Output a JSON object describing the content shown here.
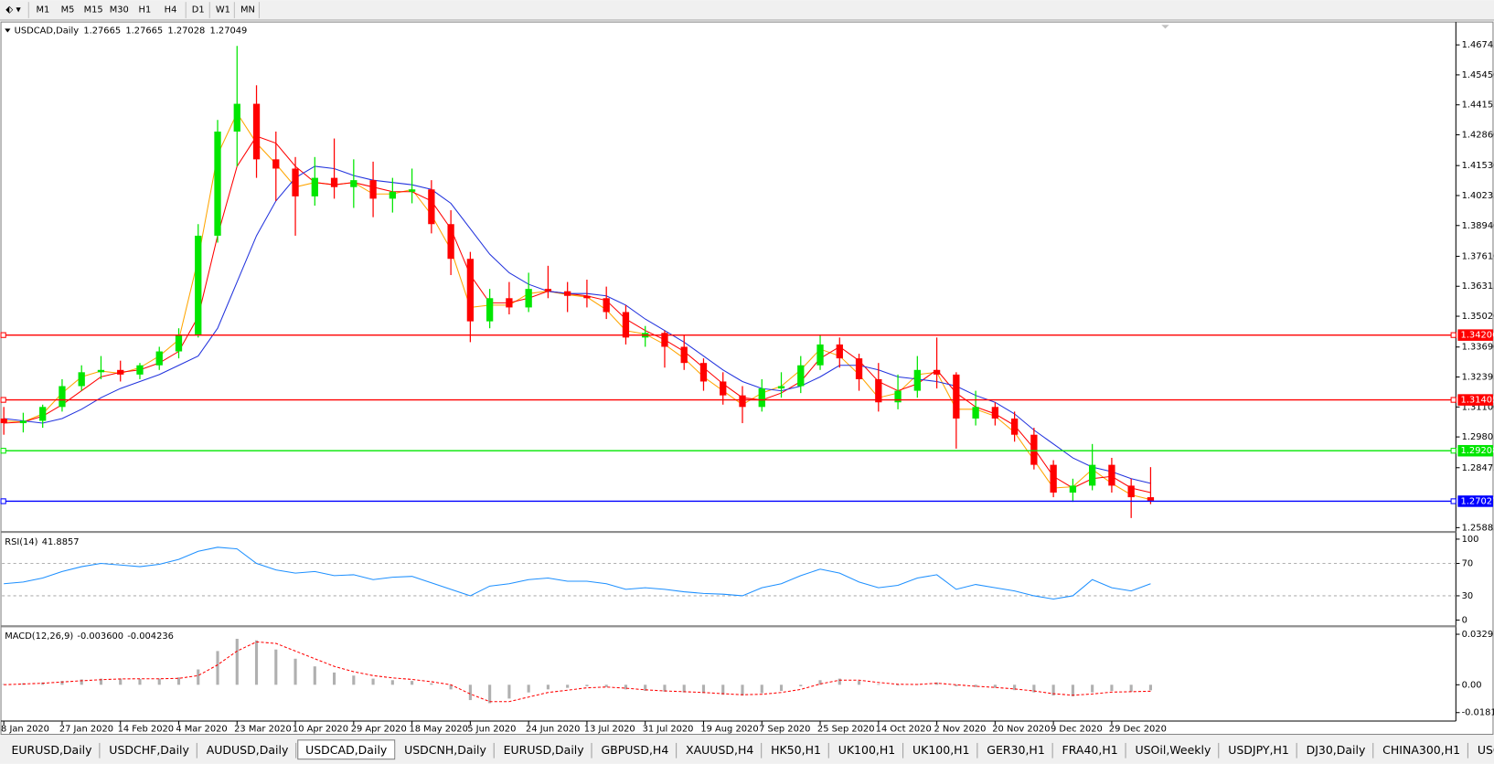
{
  "toolbar": {
    "timeframes": [
      "M1",
      "M5",
      "M15",
      "M30",
      "H1",
      "H4",
      "D1",
      "W1",
      "MN"
    ]
  },
  "chart_data": [
    {
      "type": "candlestick",
      "title": "USDCAD,Daily",
      "header_values": [
        1.27665,
        1.27665,
        1.27028,
        1.27049
      ],
      "categories": [
        "8 Jan 2020",
        null,
        null,
        "27 Jan 2020",
        null,
        null,
        "14 Feb 2020",
        null,
        null,
        "4 Mar 2020",
        null,
        null,
        "23 Mar 2020",
        null,
        null,
        "10 Apr 2020",
        null,
        null,
        "29 Apr 2020",
        null,
        null,
        "18 May 2020",
        null,
        null,
        "5 Jun 2020",
        null,
        null,
        "24 Jun 2020",
        null,
        null,
        "13 Jul 2020",
        null,
        null,
        "31 Jul 2020",
        null,
        null,
        "19 Aug 2020",
        null,
        null,
        "7 Sep 2020",
        null,
        null,
        "25 Sep 2020",
        null,
        null,
        "14 Oct 2020",
        null,
        null,
        "2 Nov 2020",
        null,
        null,
        "20 Nov 2020",
        null,
        null,
        "9 Dec 2020",
        null,
        null,
        "29 Dec 2020",
        null,
        null
      ],
      "open": [
        1.306,
        1.304,
        1.305,
        1.311,
        1.32,
        1.326,
        1.327,
        1.325,
        1.329,
        1.335,
        1.342,
        1.385,
        1.43,
        1.442,
        1.418,
        1.414,
        1.402,
        1.41,
        1.406,
        1.409,
        1.401,
        1.404,
        1.405,
        1.39,
        1.375,
        1.348,
        1.358,
        1.354,
        1.362,
        1.361,
        1.359,
        1.358,
        1.352,
        1.341,
        1.343,
        1.337,
        1.33,
        1.322,
        1.316,
        1.311,
        1.319,
        1.32,
        1.329,
        1.338,
        1.332,
        1.323,
        1.313,
        1.318,
        1.327,
        1.325,
        1.306,
        1.311,
        1.306,
        1.299,
        1.286,
        1.274,
        1.277,
        1.286,
        1.277,
        1.272
      ],
      "high": [
        1.311,
        1.3085,
        1.312,
        1.323,
        1.329,
        1.333,
        1.331,
        1.33,
        1.337,
        1.345,
        1.39,
        1.435,
        1.467,
        1.45,
        1.43,
        1.419,
        1.419,
        1.427,
        1.418,
        1.417,
        1.41,
        1.414,
        1.409,
        1.396,
        1.378,
        1.362,
        1.365,
        1.369,
        1.372,
        1.365,
        1.366,
        1.363,
        1.355,
        1.346,
        1.344,
        1.342,
        1.332,
        1.326,
        1.32,
        1.323,
        1.326,
        1.333,
        1.342,
        1.341,
        1.334,
        1.33,
        1.325,
        1.333,
        1.341,
        1.326,
        1.318,
        1.313,
        1.309,
        1.302,
        1.288,
        1.28,
        1.295,
        1.289,
        1.28,
        1.285
      ],
      "low": [
        1.299,
        1.3,
        1.302,
        1.309,
        1.318,
        1.323,
        1.322,
        1.323,
        1.327,
        1.332,
        1.341,
        1.382,
        1.415,
        1.41,
        1.4,
        1.385,
        1.398,
        1.401,
        1.397,
        1.393,
        1.395,
        1.399,
        1.386,
        1.368,
        1.339,
        1.345,
        1.351,
        1.352,
        1.358,
        1.352,
        1.354,
        1.349,
        1.338,
        1.337,
        1.328,
        1.327,
        1.318,
        1.312,
        1.304,
        1.309,
        1.315,
        1.317,
        1.327,
        1.328,
        1.318,
        1.309,
        1.31,
        1.315,
        1.319,
        1.293,
        1.303,
        1.303,
        1.296,
        1.284,
        1.272,
        1.27,
        1.275,
        1.274,
        1.263,
        1.269
      ],
      "close": [
        1.304,
        1.305,
        1.311,
        1.32,
        1.326,
        1.327,
        1.325,
        1.329,
        1.335,
        1.342,
        1.385,
        1.43,
        1.442,
        1.418,
        1.414,
        1.402,
        1.41,
        1.406,
        1.409,
        1.401,
        1.404,
        1.405,
        1.39,
        1.375,
        1.348,
        1.358,
        1.354,
        1.362,
        1.361,
        1.359,
        1.358,
        1.352,
        1.341,
        1.343,
        1.337,
        1.33,
        1.322,
        1.316,
        1.311,
        1.319,
        1.32,
        1.329,
        1.338,
        1.332,
        1.323,
        1.313,
        1.318,
        1.327,
        1.325,
        1.306,
        1.311,
        1.306,
        1.299,
        1.286,
        1.274,
        1.277,
        1.286,
        1.277,
        1.272,
        1.2705
      ],
      "up_color": "#00e600",
      "down_color": "#ff0000",
      "series": [
        {
          "color": "#ffa500",
          "values": [
            1.305,
            1.3045,
            1.308,
            1.317,
            1.324,
            1.3265,
            1.3255,
            1.328,
            1.333,
            1.34,
            1.375,
            1.42,
            1.438,
            1.425,
            1.416,
            1.406,
            1.408,
            1.407,
            1.408,
            1.403,
            1.403,
            1.405,
            1.394,
            1.379,
            1.354,
            1.355,
            1.355,
            1.36,
            1.361,
            1.3595,
            1.3585,
            1.353,
            1.344,
            1.3425,
            1.338,
            1.332,
            1.324,
            1.318,
            1.312,
            1.317,
            1.32,
            1.327,
            1.336,
            1.333,
            1.325,
            1.315,
            1.317,
            1.325,
            1.326,
            1.31,
            1.31,
            1.307,
            1.3,
            1.288,
            1.276,
            1.2765,
            1.284,
            1.278,
            1.273,
            1.271
          ]
        },
        {
          "color": "#ff0000",
          "values": [
            1.304,
            1.3045,
            1.307,
            1.312,
            1.318,
            1.324,
            1.326,
            1.327,
            1.33,
            1.335,
            1.35,
            1.385,
            1.415,
            1.428,
            1.425,
            1.415,
            1.408,
            1.407,
            1.408,
            1.406,
            1.404,
            1.404,
            1.4,
            1.388,
            1.368,
            1.356,
            1.356,
            1.358,
            1.361,
            1.36,
            1.359,
            1.357,
            1.349,
            1.344,
            1.34,
            1.335,
            1.328,
            1.321,
            1.315,
            1.314,
            1.317,
            1.322,
            1.332,
            1.337,
            1.331,
            1.322,
            1.318,
            1.321,
            1.327,
            1.317,
            1.311,
            1.308,
            1.303,
            1.293,
            1.281,
            1.276,
            1.28,
            1.281,
            1.276,
            1.274
          ]
        },
        {
          "color": "#2233dd",
          "values": [
            1.306,
            1.305,
            1.304,
            1.306,
            1.31,
            1.315,
            1.319,
            1.322,
            1.325,
            1.329,
            1.333,
            1.345,
            1.365,
            1.385,
            1.4,
            1.41,
            1.415,
            1.414,
            1.411,
            1.409,
            1.408,
            1.407,
            1.405,
            1.399,
            1.388,
            1.377,
            1.369,
            1.364,
            1.361,
            1.36,
            1.36,
            1.359,
            1.355,
            1.349,
            1.344,
            1.339,
            1.333,
            1.327,
            1.322,
            1.319,
            1.318,
            1.32,
            1.324,
            1.329,
            1.329,
            1.327,
            1.324,
            1.323,
            1.322,
            1.32,
            1.316,
            1.313,
            1.308,
            1.301,
            1.295,
            1.289,
            1.285,
            1.283,
            1.28,
            1.278
          ]
        }
      ],
      "levels": [
        {
          "value": 1.34206,
          "color": "#ff0000"
        },
        {
          "value": 1.31405,
          "color": "#ff0000"
        },
        {
          "value": 1.29208,
          "color": "#00e600"
        },
        {
          "value": 1.27027,
          "color": "#0000ff"
        }
      ],
      "ylim": [
        1.258,
        1.4761
      ],
      "yticks": [
        1.46745,
        {
          "value": 1.4545,
          "label": "1.45450"
        },
        1.44155,
        {
          "value": 1.4286,
          "label": "1.42860"
        },
        {
          "value": 1.4153,
          "label": "1.41530"
        },
        1.40235,
        {
          "value": 1.3894,
          "label": "1.38940"
        },
        {
          "value": 1.3761,
          "label": "1.37610"
        },
        1.36315,
        {
          "value": 1.3502,
          "label": "1.35020"
        },
        {
          "value": 1.3369,
          "label": "1.33690"
        },
        1.32395,
        {
          "value": 1.311,
          "label": "1.31100"
        },
        1.29805,
        1.28475,
        1.25885
      ]
    },
    {
      "type": "line",
      "title": "RSI(14)",
      "title_value": 41.8857,
      "series": [
        {
          "color": "#1e90ff",
          "values": [
            45,
            47,
            52,
            60,
            66,
            70,
            68,
            66,
            69,
            75,
            85,
            90,
            88,
            70,
            62,
            58,
            60,
            55,
            56,
            50,
            53,
            54,
            46,
            38,
            30,
            42,
            45,
            50,
            52,
            48,
            48,
            45,
            38,
            40,
            38,
            35,
            33,
            32,
            30,
            40,
            45,
            55,
            63,
            58,
            47,
            40,
            43,
            52,
            56,
            38,
            44,
            40,
            36,
            30,
            26,
            30,
            50,
            40,
            36,
            45
          ]
        }
      ],
      "levels": [
        70,
        30
      ],
      "ylim": [
        0,
        100
      ],
      "yticks": [
        100,
        70,
        30,
        0
      ]
    },
    {
      "type": "macd",
      "title": "MACD(12,26,9)",
      "title_values": [
        -0.0036,
        -0.004236
      ],
      "title_value_labels": [
        "-0.003600",
        "-0.004236"
      ],
      "histogram": {
        "color": "#b0b0b0",
        "values": [
          0.0005,
          0.001,
          0.0015,
          0.0025,
          0.0035,
          0.004,
          0.004,
          0.0038,
          0.004,
          0.0048,
          0.01,
          0.022,
          0.03,
          0.029,
          0.023,
          0.017,
          0.012,
          0.008,
          0.006,
          0.004,
          0.003,
          0.0025,
          0.001,
          -0.003,
          -0.01,
          -0.012,
          -0.009,
          -0.005,
          -0.003,
          -0.002,
          -0.001,
          -0.0015,
          -0.003,
          -0.004,
          -0.0045,
          -0.005,
          -0.0055,
          -0.0065,
          -0.007,
          -0.0055,
          -0.004,
          -0.001,
          0.003,
          0.004,
          0.0025,
          0.0005,
          -0.0005,
          0.0005,
          0.0015,
          -0.001,
          -0.0015,
          -0.002,
          -0.0035,
          -0.005,
          -0.007,
          -0.0075,
          -0.005,
          -0.004,
          -0.0045,
          -0.0036
        ]
      },
      "signal": {
        "color": "#ff0000",
        "values": [
          0.0,
          0.0005,
          0.001,
          0.0018,
          0.0026,
          0.0033,
          0.0038,
          0.0039,
          0.0039,
          0.0042,
          0.006,
          0.013,
          0.022,
          0.028,
          0.027,
          0.022,
          0.017,
          0.012,
          0.0085,
          0.006,
          0.0045,
          0.0035,
          0.002,
          0.0,
          -0.006,
          -0.011,
          -0.011,
          -0.008,
          -0.005,
          -0.0035,
          -0.002,
          -0.0015,
          -0.0022,
          -0.0033,
          -0.004,
          -0.0045,
          -0.005,
          -0.0058,
          -0.0065,
          -0.0062,
          -0.005,
          -0.003,
          0.0005,
          0.003,
          0.003,
          0.0015,
          0.0003,
          0.0002,
          0.001,
          0.0,
          -0.001,
          -0.0017,
          -0.0027,
          -0.004,
          -0.0058,
          -0.0068,
          -0.006,
          -0.0048,
          -0.0045,
          -0.0042
        ]
      },
      "ylim": [
        -0.0218,
        0.036
      ],
      "yticks": [
        0.032972,
        {
          "value": 0,
          "label": "0.00"
        },
        -0.018154
      ]
    }
  ],
  "tabs": {
    "items": [
      "EURUSD,Daily",
      "USDCHF,Daily",
      "AUDUSD,Daily",
      "USDCAD,Daily",
      "USDCNH,Daily",
      "EURUSD,Daily",
      "GBPUSD,H4",
      "XAUUSD,H4",
      "HK50,H1",
      "UK100,H1",
      "UK100,H1",
      "GER30,H1",
      "FRA40,H1",
      "USOil,Weekly",
      "USDJPY,H1",
      "DJ30,Daily",
      "CHINA300,H1",
      "USOil,"
    ],
    "active": 3
  }
}
